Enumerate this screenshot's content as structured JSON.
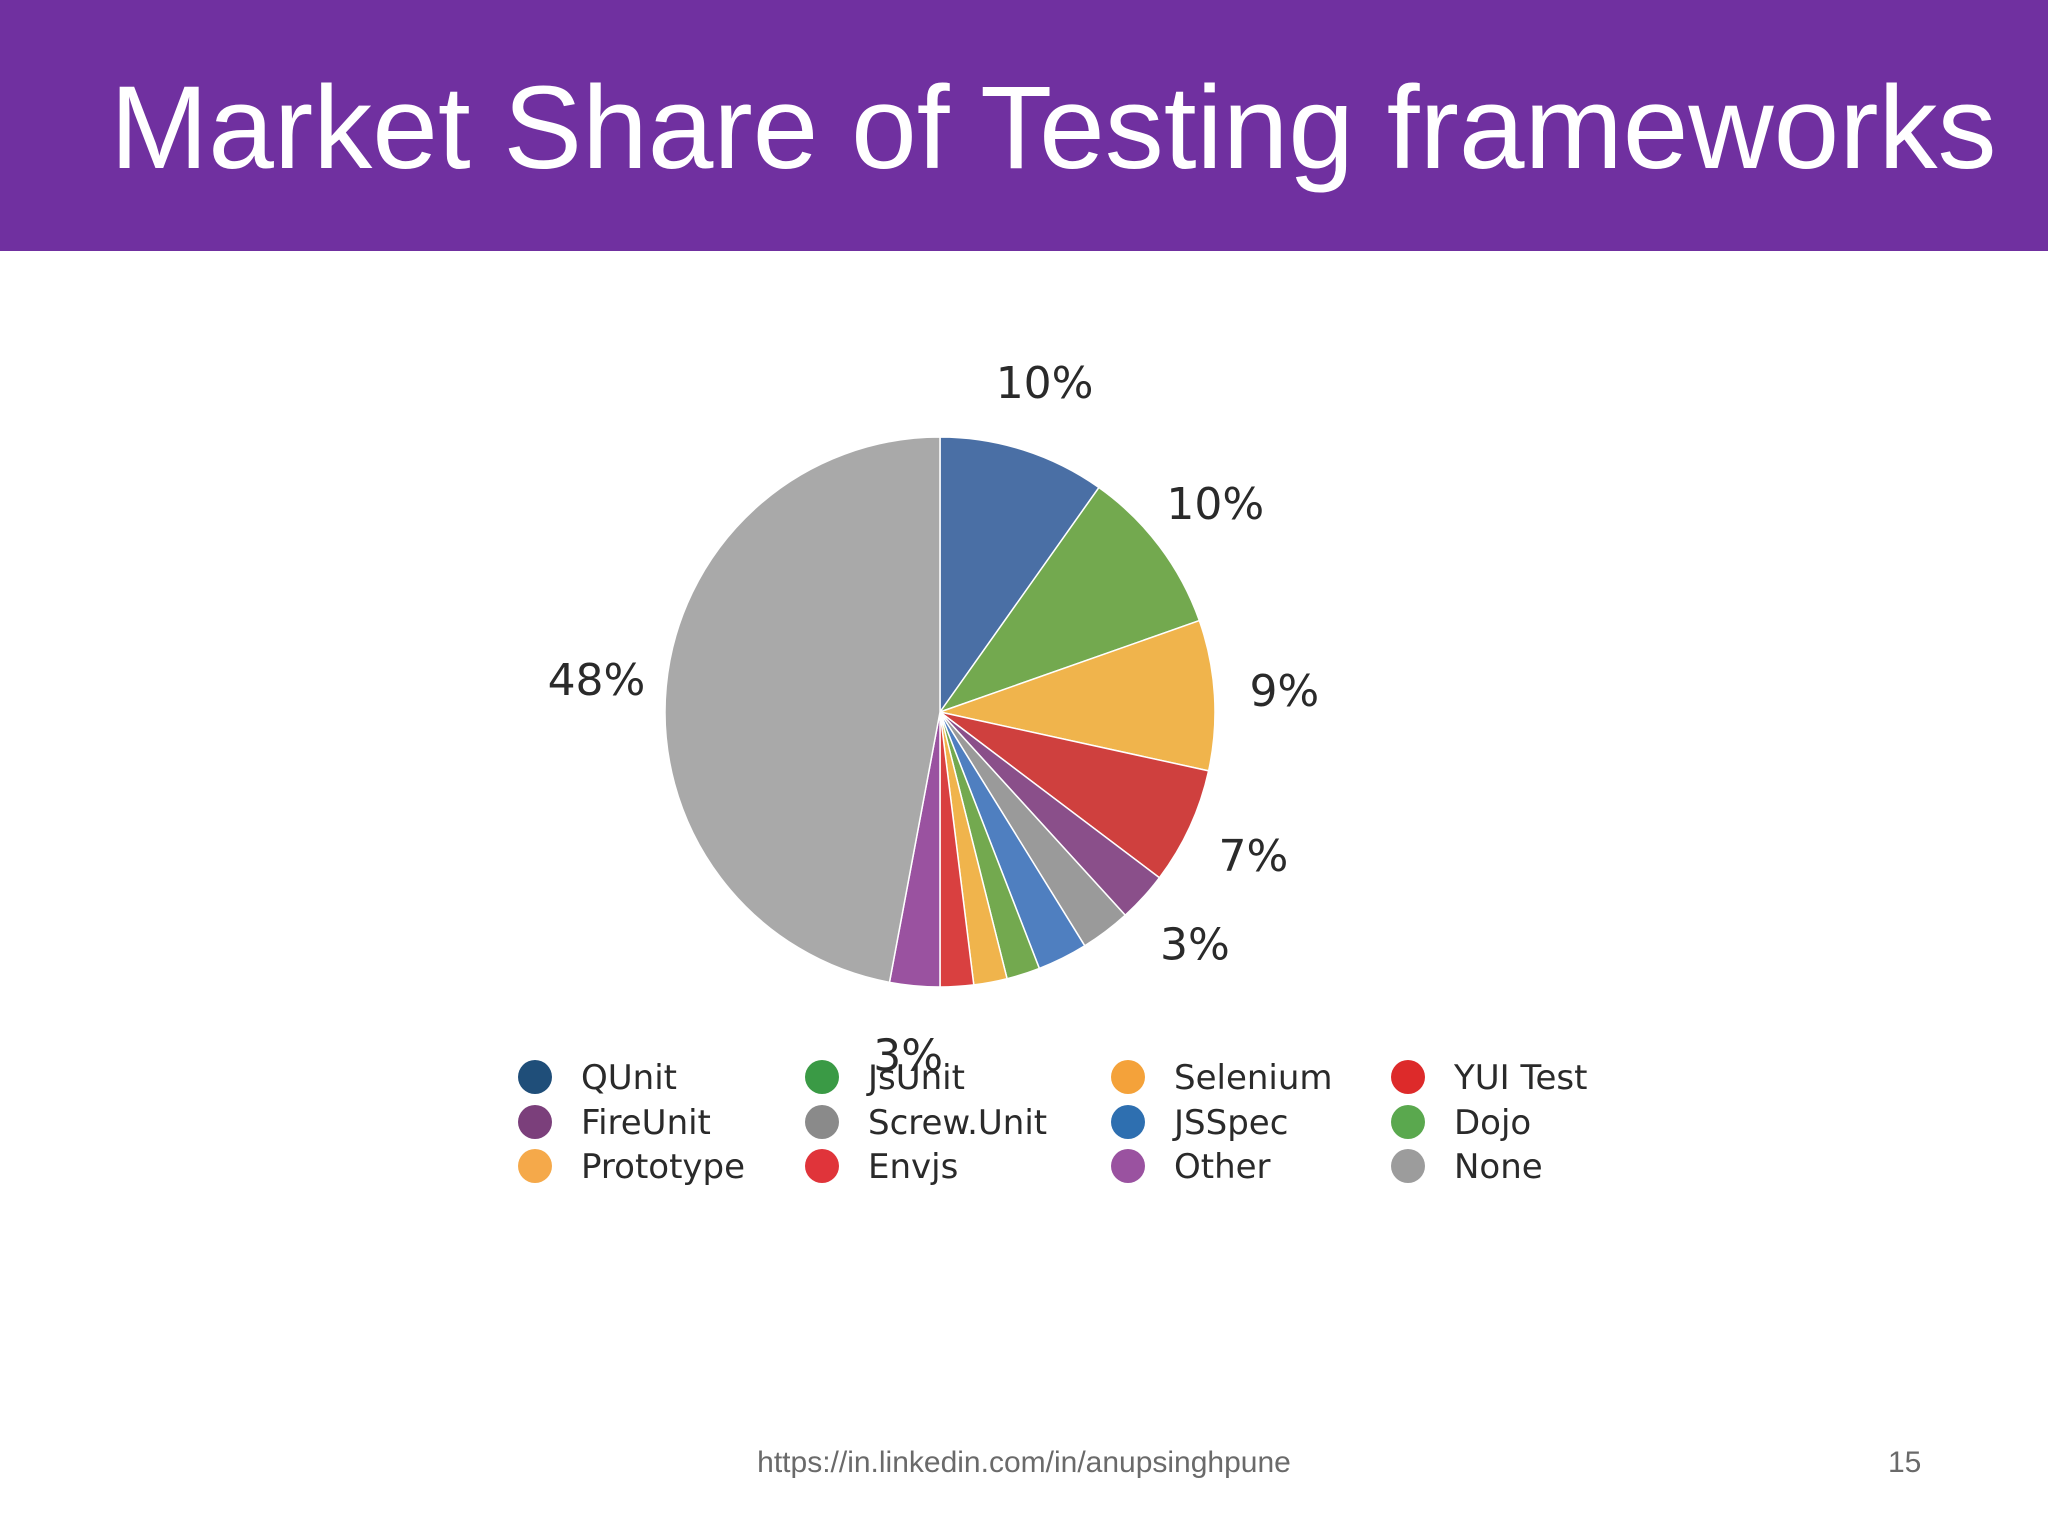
{
  "slide": {
    "title": "Market Share of Testing frameworks",
    "footer_url": "https://in.linkedin.com/in/anupsinghpune",
    "page_number": "15"
  },
  "chart_data": {
    "type": "pie",
    "start": "12 o'clock, clockwise",
    "slices": [
      {
        "name": "QUnit",
        "value": 10,
        "color": "#4a6fa5",
        "label": "10%"
      },
      {
        "name": "JsUnit",
        "value": 10,
        "color": "#73a94f",
        "label": "10%"
      },
      {
        "name": "Selenium",
        "value": 9,
        "color": "#f0b44c",
        "label": "9%"
      },
      {
        "name": "YUI Test",
        "value": 7,
        "color": "#cf403e",
        "label": "7%"
      },
      {
        "name": "FireUnit",
        "value": 3,
        "color": "#8a4f8a",
        "label": "3%"
      },
      {
        "name": "ScrewUnit",
        "value": 3,
        "color": "#9a9a9a",
        "label": ""
      },
      {
        "name": "JSSpec",
        "value": 3,
        "color": "#4f7fc0",
        "label": ""
      },
      {
        "name": "Dojo",
        "value": 2,
        "color": "#73a94f",
        "label": ""
      },
      {
        "name": "Prototype",
        "value": 2,
        "color": "#f0b44c",
        "label": ""
      },
      {
        "name": "Envjs",
        "value": 2,
        "color": "#d94040",
        "label": ""
      },
      {
        "name": "Other",
        "value": 3,
        "color": "#9a52a0",
        "label": "3%"
      },
      {
        "name": "None",
        "value": 48,
        "color": "#a9a9a9",
        "label": "48%"
      }
    ],
    "legend": {
      "placement": "bottom",
      "columns": [
        [
          {
            "label": "QUnit",
            "color": "#1f4e79"
          },
          {
            "label": "FireUnit",
            "color": "#7b3f7b"
          },
          {
            "label": "Prototype",
            "color": "#f5a94a"
          }
        ],
        [
          {
            "label": "JsUnit",
            "color": "#3a9a45"
          },
          {
            "label": "Screw.Unit",
            "color": "#8a8a8a"
          },
          {
            "label": "Envjs",
            "color": "#e0343a"
          }
        ],
        [
          {
            "label": "Selenium",
            "color": "#f4a23a"
          },
          {
            "label": "JSSpec",
            "color": "#2e6fb0"
          },
          {
            "label": "Other",
            "color": "#9a52a0"
          }
        ],
        [
          {
            "label": "YUI Test",
            "color": "#dd2a2a"
          },
          {
            "label": "Dojo",
            "color": "#5aa84e"
          },
          {
            "label": "None",
            "color": "#9c9c9c"
          }
        ]
      ]
    }
  }
}
